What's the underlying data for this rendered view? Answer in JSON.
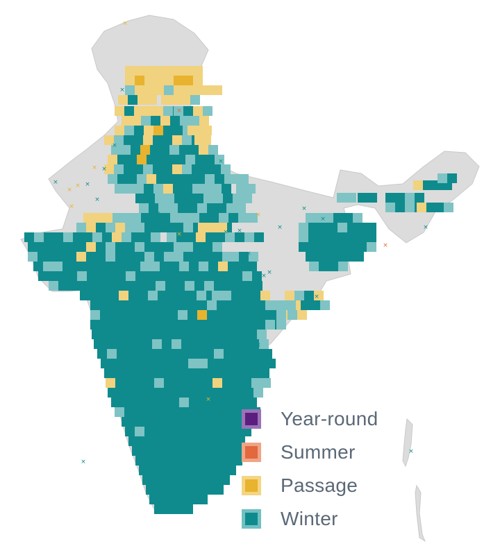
{
  "map": {
    "land_color": "#dcdcdc",
    "land_stroke": "#c9c9c9",
    "background": "#ffffff",
    "legend": [
      {
        "key": "year_round",
        "label": "Year-round",
        "fill": "#5a1f7e",
        "border": "#9b72b8"
      },
      {
        "key": "summer",
        "label": "Summer",
        "fill": "#e2683e",
        "border": "#f0a486"
      },
      {
        "key": "passage",
        "label": "Passage",
        "fill": "#e8b32f",
        "border": "#f3d583"
      },
      {
        "key": "winter",
        "label": "Winter",
        "fill": "#0f8b8d",
        "border": "#72c0c2"
      }
    ],
    "winter_light_color": "#7fc3c4",
    "passage_light_color": "#f1d27e",
    "marker_glyph": "×"
  }
}
